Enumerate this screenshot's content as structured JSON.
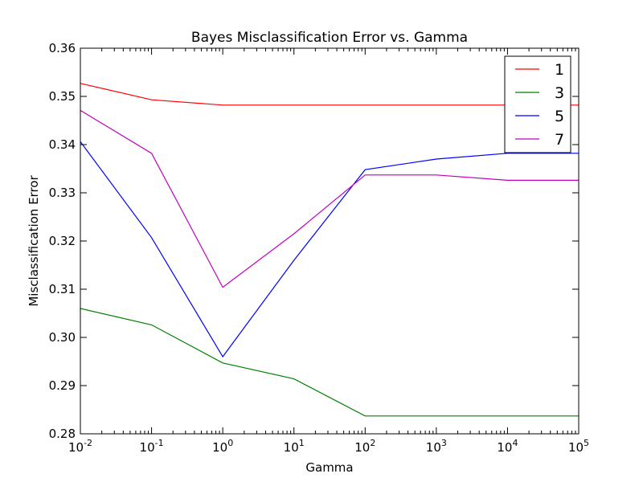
{
  "chart_data": {
    "type": "line",
    "title": "Bayes Misclassification Error vs. Gamma",
    "xlabel": "Gamma",
    "ylabel": "Misclassification Error",
    "x_scale": "log",
    "x": [
      0.01,
      0.1,
      1,
      10,
      100,
      1000,
      10000,
      100000
    ],
    "xlim": [
      0.01,
      100000
    ],
    "ylim": [
      0.28,
      0.36
    ],
    "x_ticks": [
      {
        "value": 0.01,
        "base": "10",
        "exp": "-2"
      },
      {
        "value": 0.1,
        "base": "10",
        "exp": "-1"
      },
      {
        "value": 1,
        "base": "10",
        "exp": "0"
      },
      {
        "value": 10,
        "base": "10",
        "exp": "1"
      },
      {
        "value": 100,
        "base": "10",
        "exp": "2"
      },
      {
        "value": 1000,
        "base": "10",
        "exp": "3"
      },
      {
        "value": 10000,
        "base": "10",
        "exp": "4"
      },
      {
        "value": 100000,
        "base": "10",
        "exp": "5"
      }
    ],
    "y_ticks": [
      {
        "value": 0.28,
        "label": "0.28"
      },
      {
        "value": 0.29,
        "label": "0.29"
      },
      {
        "value": 0.3,
        "label": "0.30"
      },
      {
        "value": 0.31,
        "label": "0.31"
      },
      {
        "value": 0.32,
        "label": "0.32"
      },
      {
        "value": 0.33,
        "label": "0.33"
      },
      {
        "value": 0.34,
        "label": "0.34"
      },
      {
        "value": 0.35,
        "label": "0.35"
      },
      {
        "value": 0.36,
        "label": "0.36"
      }
    ],
    "grid": false,
    "legend_position": "top-right",
    "series": [
      {
        "name": "1",
        "color": "#ff0000",
        "values": [
          0.3527,
          0.3493,
          0.3482,
          0.3482,
          0.3482,
          0.3482,
          0.3482,
          0.3482
        ]
      },
      {
        "name": "3",
        "color": "#008000",
        "values": [
          0.306,
          0.3026,
          0.2947,
          0.2914,
          0.2837,
          0.2837,
          0.2837,
          0.2837
        ]
      },
      {
        "name": "5",
        "color": "#0000ff",
        "values": [
          0.3406,
          0.3207,
          0.296,
          0.316,
          0.3348,
          0.337,
          0.3382,
          0.3382
        ]
      },
      {
        "name": "7",
        "color": "#bf00bf",
        "values": [
          0.3471,
          0.3382,
          0.3104,
          0.3215,
          0.3337,
          0.3337,
          0.3326,
          0.3326
        ]
      }
    ]
  }
}
